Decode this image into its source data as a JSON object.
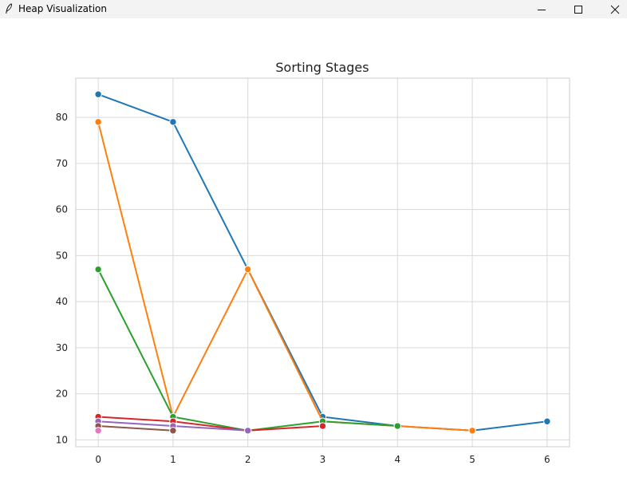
{
  "window": {
    "title": "Heap Visualization",
    "icons": {
      "app": "feather-icon",
      "minimize": "minimize-icon",
      "maximize": "maximize-icon",
      "close": "close-icon"
    }
  },
  "chart_data": {
    "type": "line",
    "title": "Sorting Stages",
    "xlabel": "",
    "ylabel": "",
    "xlim": [
      -0.3,
      6.3
    ],
    "ylim": [
      8.5,
      88.5
    ],
    "x_ticks": [
      0,
      1,
      2,
      3,
      4,
      5,
      6
    ],
    "y_ticks": [
      10,
      20,
      30,
      40,
      50,
      60,
      70,
      80
    ],
    "grid": true,
    "marker": "circle",
    "series": [
      {
        "color": "#1f77b4",
        "x": [
          0,
          1,
          2,
          3,
          4,
          5,
          6
        ],
        "values": [
          85,
          79,
          47,
          15,
          13,
          12,
          14
        ]
      },
      {
        "color": "#ff7f0e",
        "x": [
          0,
          1,
          2,
          3,
          4,
          5
        ],
        "values": [
          79,
          15,
          47,
          14,
          13,
          12
        ]
      },
      {
        "color": "#2ca02c",
        "x": [
          0,
          1,
          2,
          3,
          4
        ],
        "values": [
          47,
          15,
          12,
          14,
          13
        ]
      },
      {
        "color": "#d62728",
        "x": [
          0,
          1,
          2,
          3
        ],
        "values": [
          15,
          14,
          12,
          13
        ]
      },
      {
        "color": "#9467bd",
        "x": [
          0,
          1,
          2
        ],
        "values": [
          14,
          13,
          12
        ]
      },
      {
        "color": "#8c564b",
        "x": [
          0,
          1
        ],
        "values": [
          13,
          12
        ]
      },
      {
        "color": "#e377c2",
        "x": [
          0
        ],
        "values": [
          12
        ]
      }
    ]
  }
}
